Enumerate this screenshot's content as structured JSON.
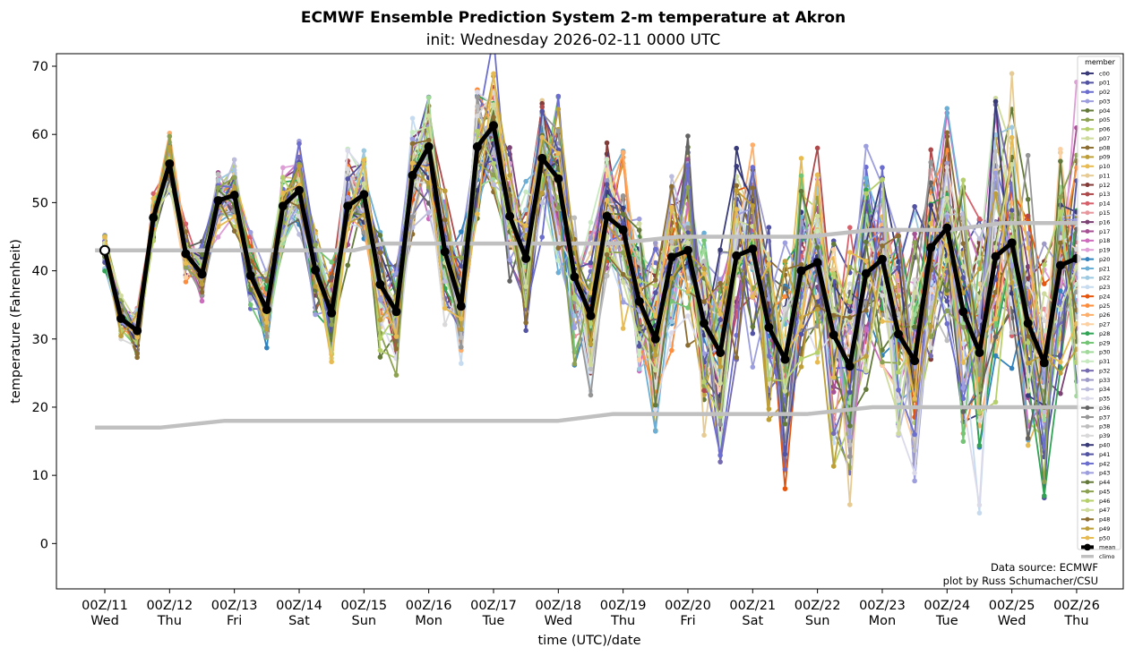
{
  "chart_data": {
    "type": "line",
    "title": "ECMWF Ensemble Prediction System 2-m temperature at Akron",
    "subtitle": "init: Wednesday 2026-02-11 0000 UTC",
    "xlabel": "time (UTC)/date",
    "ylabel": "temperature (Fahrenheit)",
    "ylim": [
      -6.5,
      71.5
    ],
    "yticks": [
      0,
      10,
      20,
      30,
      40,
      50,
      60,
      70
    ],
    "xlim_days": [
      -0.55,
      15.35
    ],
    "xticks": [
      {
        "day": 0,
        "label1": "00Z/11",
        "label2": "Wed"
      },
      {
        "day": 1,
        "label1": "00Z/12",
        "label2": "Thu"
      },
      {
        "day": 2,
        "label1": "00Z/13",
        "label2": "Fri"
      },
      {
        "day": 3,
        "label1": "00Z/14",
        "label2": "Sat"
      },
      {
        "day": 4,
        "label1": "00Z/15",
        "label2": "Sun"
      },
      {
        "day": 5,
        "label1": "00Z/16",
        "label2": "Mon"
      },
      {
        "day": 6,
        "label1": "00Z/17",
        "label2": "Tue"
      },
      {
        "day": 7,
        "label1": "00Z/18",
        "label2": "Wed"
      },
      {
        "day": 8,
        "label1": "00Z/19",
        "label2": "Thu"
      },
      {
        "day": 9,
        "label1": "00Z/20",
        "label2": "Fri"
      },
      {
        "day": 10,
        "label1": "00Z/21",
        "label2": "Sat"
      },
      {
        "day": 11,
        "label1": "00Z/22",
        "label2": "Sun"
      },
      {
        "day": 12,
        "label1": "00Z/23",
        "label2": "Mon"
      },
      {
        "day": 13,
        "label1": "00Z/24",
        "label2": "Tue"
      },
      {
        "day": 14,
        "label1": "00Z/25",
        "label2": "Wed"
      },
      {
        "day": 15,
        "label1": "00Z/26",
        "label2": "Thu"
      }
    ],
    "grid": false,
    "legend": {
      "title": "member",
      "placement": "right"
    },
    "time_days": [
      0,
      0.25,
      0.5,
      0.75,
      1,
      1.25,
      1.5,
      1.75,
      2,
      2.25,
      2.5,
      2.75,
      3,
      3.25,
      3.5,
      3.75,
      4,
      4.25,
      4.5,
      4.75,
      5,
      5.25,
      5.5,
      5.75,
      6,
      6.25,
      6.5,
      6.75,
      7,
      7.25,
      7.5,
      7.75,
      8,
      8.25,
      8.5,
      8.75,
      9,
      9.25,
      9.5,
      9.75,
      10,
      10.25,
      10.5,
      10.75,
      11,
      11.25,
      11.5,
      11.75,
      12,
      12.25,
      12.5,
      12.75,
      13,
      13.25,
      13.5,
      13.75,
      14,
      14.25,
      14.5,
      14.75,
      15
    ],
    "mean": {
      "name": "mean",
      "color": "#000000",
      "values": [
        43,
        33,
        31.2,
        47.8,
        55.7,
        42.5,
        39.5,
        50.3,
        51.1,
        39.3,
        34.3,
        49.5,
        51.8,
        40.1,
        33.8,
        49.5,
        51.2,
        38,
        34,
        54,
        58.2,
        42.8,
        34.8,
        58.2,
        61.3,
        48,
        41.8,
        56.5,
        53.5,
        39.1,
        33.4,
        48,
        46,
        35.5,
        30,
        42,
        43,
        32.3,
        28,
        42.2,
        43.2,
        31.7,
        27,
        40,
        41.2,
        30.6,
        26,
        39.6,
        41.7,
        30.7,
        26.8,
        43.4,
        46.3,
        34,
        28,
        42.1,
        44.1,
        32.3,
        26.5,
        40.8,
        41.8
      ]
    },
    "climo": {
      "name": "climo",
      "color": "#c0c0c0",
      "days": [
        -0.15,
        0.85,
        1.85,
        6.85,
        7.85,
        10.85,
        11.85,
        13.05,
        13.85,
        15.35
      ],
      "max_values": [
        43,
        43,
        43,
        43,
        44,
        45,
        45,
        46,
        47,
        47
      ],
      "min_values": [
        17,
        17,
        18,
        18,
        18,
        19,
        19,
        20,
        20,
        20
      ],
      "max_full": {
        "days": [
          -0.15,
          3.85,
          4.3,
          5,
          6.85,
          7.85,
          8.85,
          10.85,
          11.85,
          13.05,
          13.85,
          15.35
        ],
        "values": [
          43,
          43,
          44,
          44,
          44,
          44,
          45,
          45,
          46,
          46,
          47,
          47
        ]
      },
      "min_full": {
        "days": [
          -0.15,
          0.85,
          1.85,
          7.0,
          7.85,
          10.85,
          11.85,
          13.05,
          15.35
        ],
        "values": [
          17,
          17,
          18,
          18,
          19,
          19,
          20,
          20,
          20
        ]
      }
    },
    "members": [
      {
        "name": "c00",
        "color": "#393b79"
      },
      {
        "name": "p01",
        "color": "#5254a3"
      },
      {
        "name": "p02",
        "color": "#6b6ecf"
      },
      {
        "name": "p03",
        "color": "#9c9ede"
      },
      {
        "name": "p04",
        "color": "#637939"
      },
      {
        "name": "p05",
        "color": "#8ca252"
      },
      {
        "name": "p06",
        "color": "#b5cf6b"
      },
      {
        "name": "p07",
        "color": "#cedb9c"
      },
      {
        "name": "p08",
        "color": "#8c6d31"
      },
      {
        "name": "p09",
        "color": "#bd9e39"
      },
      {
        "name": "p10",
        "color": "#e7ba52"
      },
      {
        "name": "p11",
        "color": "#e7cb94"
      },
      {
        "name": "p12",
        "color": "#843c39"
      },
      {
        "name": "p13",
        "color": "#ad494a"
      },
      {
        "name": "p14",
        "color": "#d6616b"
      },
      {
        "name": "p15",
        "color": "#e7969c"
      },
      {
        "name": "p16",
        "color": "#7b4173"
      },
      {
        "name": "p17",
        "color": "#a55194"
      },
      {
        "name": "p18",
        "color": "#ce6dbd"
      },
      {
        "name": "p19",
        "color": "#de9ed6"
      },
      {
        "name": "p20",
        "color": "#3182bd"
      },
      {
        "name": "p21",
        "color": "#6baed6"
      },
      {
        "name": "p22",
        "color": "#9ecae1"
      },
      {
        "name": "p23",
        "color": "#c6dbef"
      },
      {
        "name": "p24",
        "color": "#e6550d"
      },
      {
        "name": "p25",
        "color": "#fd8d3c"
      },
      {
        "name": "p26",
        "color": "#fdae6b"
      },
      {
        "name": "p27",
        "color": "#fdd0a2"
      },
      {
        "name": "p28",
        "color": "#31a354"
      },
      {
        "name": "p29",
        "color": "#74c476"
      },
      {
        "name": "p30",
        "color": "#a1d99b"
      },
      {
        "name": "p31",
        "color": "#c7e9c0"
      },
      {
        "name": "p32",
        "color": "#756bb1"
      },
      {
        "name": "p33",
        "color": "#9e9ac8"
      },
      {
        "name": "p34",
        "color": "#bcbddc"
      },
      {
        "name": "p35",
        "color": "#dadaeb"
      },
      {
        "name": "p36",
        "color": "#636363"
      },
      {
        "name": "p37",
        "color": "#969696"
      },
      {
        "name": "p38",
        "color": "#bdbdbd"
      },
      {
        "name": "p39",
        "color": "#d9d9d9"
      },
      {
        "name": "p40",
        "color": "#393b79"
      },
      {
        "name": "p41",
        "color": "#5254a3"
      },
      {
        "name": "p42",
        "color": "#6b6ecf"
      },
      {
        "name": "p43",
        "color": "#9c9ede"
      },
      {
        "name": "p44",
        "color": "#637939"
      },
      {
        "name": "p45",
        "color": "#8ca252"
      },
      {
        "name": "p46",
        "color": "#b5cf6b"
      },
      {
        "name": "p47",
        "color": "#cedb9c"
      },
      {
        "name": "p48",
        "color": "#8c6d31"
      },
      {
        "name": "p49",
        "color": "#bd9e39"
      },
      {
        "name": "p50",
        "color": "#e7ba52"
      }
    ],
    "annotation": [
      "Data source: ECMWF",
      "plot by Russ Schumacher/CSU"
    ]
  }
}
